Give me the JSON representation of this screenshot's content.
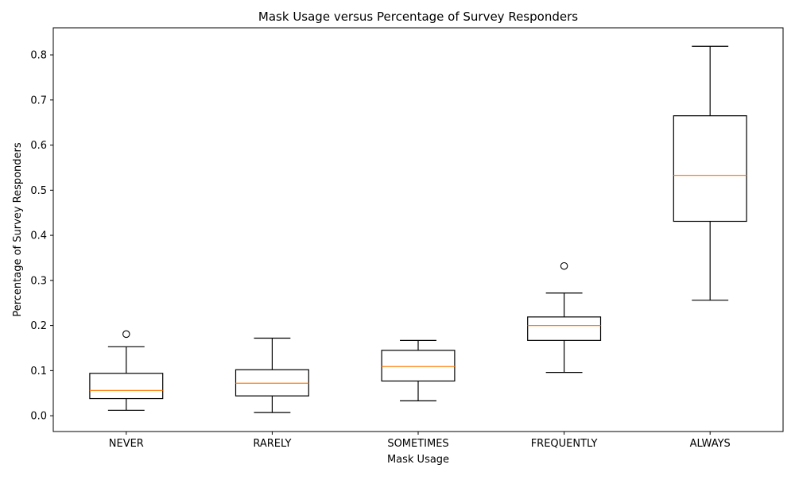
{
  "chart_data": {
    "type": "box",
    "title": "Mask Usage versus Percentage of Survey Responders",
    "xlabel": "Mask Usage",
    "ylabel": "Percentage of Survey Responders",
    "ylim": [
      -0.035,
      0.86
    ],
    "yticks": [
      0.0,
      0.1,
      0.2,
      0.3,
      0.4,
      0.5,
      0.6,
      0.7,
      0.8
    ],
    "ytick_labels": [
      "0.0",
      "0.1",
      "0.2",
      "0.3",
      "0.4",
      "0.5",
      "0.6",
      "0.7",
      "0.8"
    ],
    "grid": false,
    "legend": "none",
    "categories": [
      "NEVER",
      "RARELY",
      "SOMETIMES",
      "FREQUENTLY",
      "ALWAYS"
    ],
    "boxes": [
      {
        "category": "NEVER",
        "whisker_low": 0.012,
        "q1": 0.038,
        "median": 0.056,
        "q3": 0.094,
        "whisker_high": 0.153,
        "outliers": [
          0.181
        ]
      },
      {
        "category": "RARELY",
        "whisker_low": 0.007,
        "q1": 0.044,
        "median": 0.072,
        "q3": 0.102,
        "whisker_high": 0.172,
        "outliers": []
      },
      {
        "category": "SOMETIMES",
        "whisker_low": 0.033,
        "q1": 0.077,
        "median": 0.109,
        "q3": 0.145,
        "whisker_high": 0.167,
        "outliers": []
      },
      {
        "category": "FREQUENTLY",
        "whisker_low": 0.096,
        "q1": 0.167,
        "median": 0.2,
        "q3": 0.219,
        "whisker_high": 0.272,
        "outliers": [
          0.332
        ]
      },
      {
        "category": "ALWAYS",
        "whisker_low": 0.256,
        "q1": 0.431,
        "median": 0.533,
        "q3": 0.665,
        "whisker_high": 0.819,
        "outliers": []
      }
    ],
    "colors": {
      "box": "#000000",
      "median": "#ff7f0e",
      "axis": "#000000",
      "background": "#ffffff"
    }
  }
}
